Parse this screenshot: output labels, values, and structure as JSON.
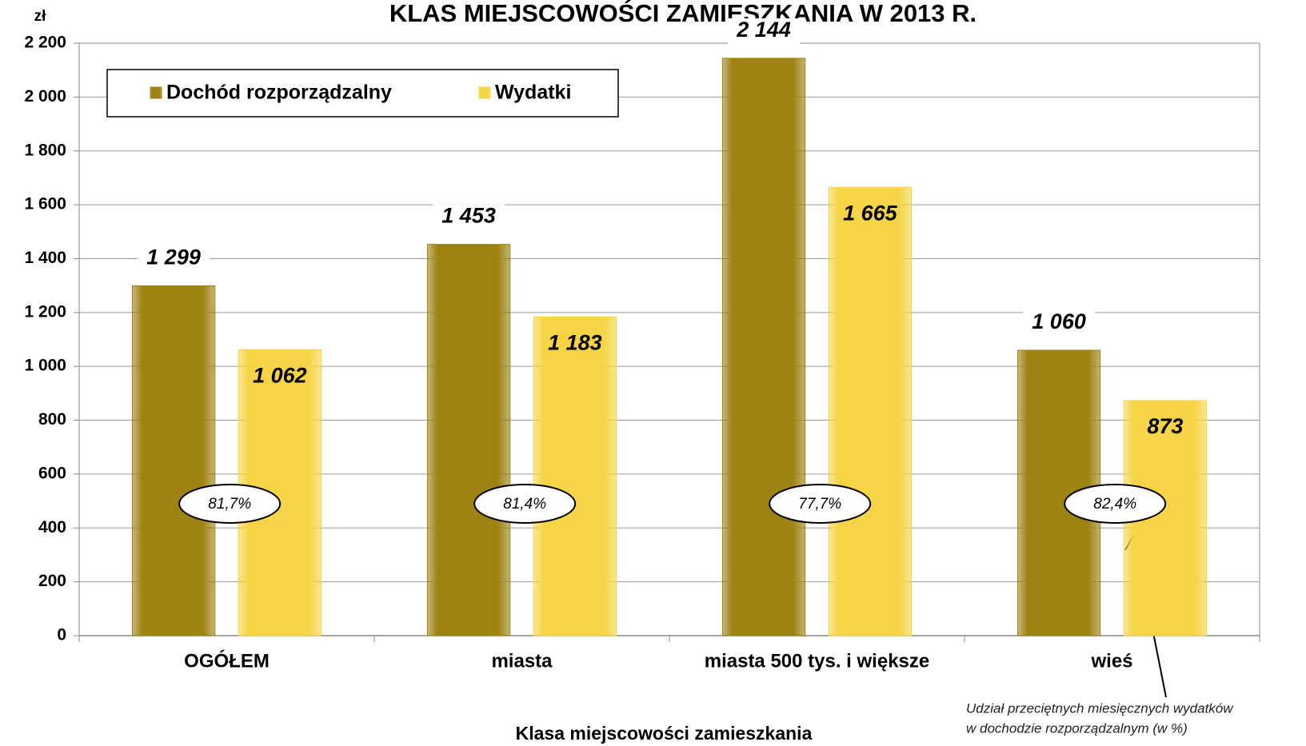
{
  "chart_data": {
    "type": "bar",
    "title": "KLAS MIEJSCOWOŚCI ZAMIESZKANIA W 2013 R.",
    "y_unit": "zł",
    "x_label": "Klasa miejscowości zamieszkania",
    "categories": [
      "OGÓŁEM",
      "miasta",
      "miasta 500 tys. i większe",
      "wieś"
    ],
    "series": [
      {
        "name": "Dochód rozporządzalny",
        "color": "#9e8213",
        "values": [
          1299,
          1453,
          2144,
          1060
        ],
        "value_labels": [
          "1 299",
          "1 453",
          "2 144",
          "1 060"
        ]
      },
      {
        "name": "Wydatki",
        "color": "#f6d445",
        "values": [
          1062,
          1183,
          1665,
          873
        ],
        "value_labels": [
          "1 062",
          "1 183",
          "1 665",
          "873"
        ]
      }
    ],
    "share": {
      "values": [
        81.7,
        81.4,
        77.7,
        82.4
      ],
      "value_labels": [
        "81,7%",
        "81,4%",
        "77,7%",
        "82,4%"
      ]
    },
    "annotation": [
      "Udział przeciętnych miesięcznych wydatków",
      "w dochodzie rozporządzalnym (w %)"
    ],
    "ylim": [
      0,
      2200
    ],
    "yticks": [
      0,
      200,
      400,
      600,
      800,
      {
        "value": 1000,
        "label": "1 000"
      },
      {
        "value": 1200,
        "label": "1 200"
      },
      {
        "value": 1400,
        "label": "1 400"
      },
      {
        "value": 1600,
        "label": "1 600"
      },
      {
        "value": 1800,
        "label": "1 800"
      },
      {
        "value": 2000,
        "label": "2 000"
      },
      {
        "value": 2200,
        "label": "2 200"
      }
    ],
    "grid": true,
    "legend": "top-left"
  }
}
